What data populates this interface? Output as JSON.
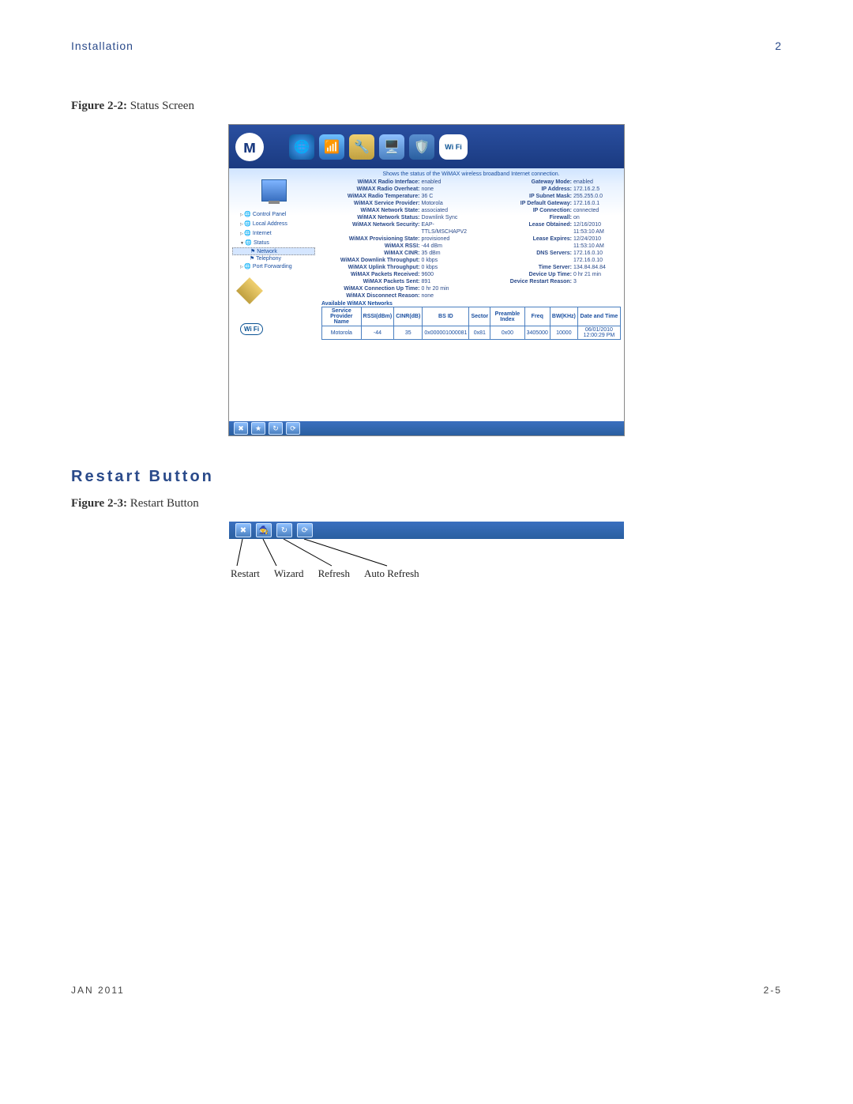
{
  "header": {
    "section": "Installation",
    "page_marker": "2"
  },
  "figure2": {
    "label": "Figure 2-2:",
    "title": "Status Screen"
  },
  "section_title": "Restart Button",
  "figure3": {
    "label": "Figure 2-3:",
    "title": "Restart Button"
  },
  "footer": {
    "date": "JAN 2011",
    "pageno": "2-5"
  },
  "status_screen": {
    "intro": "Shows the status of the WiMAX wireless broadband Internet connection.",
    "nav": {
      "items": [
        {
          "label": "Control Panel",
          "icon": "globe",
          "state": "collapsed"
        },
        {
          "label": "Local Address",
          "icon": "globe",
          "state": "collapsed"
        },
        {
          "label": "Internet",
          "icon": "globe",
          "state": "collapsed"
        },
        {
          "label": "Status",
          "icon": "flag",
          "state": "expanded",
          "children": [
            {
              "label": "Network",
              "selected": true
            },
            {
              "label": "Telephony",
              "selected": false
            }
          ]
        },
        {
          "label": "Port Forwarding",
          "icon": "globe",
          "state": "collapsed"
        }
      ]
    },
    "left_kv": [
      {
        "k": "WiMAX Radio Interface:",
        "v": "enabled"
      },
      {
        "k": "WiMAX Radio Overheat:",
        "v": "none"
      },
      {
        "k": "WiMAX Radio Temperature:",
        "v": "36 C"
      },
      {
        "k": "WiMAX Service Provider:",
        "v": "Motorola"
      },
      {
        "k": "WiMAX Network State:",
        "v": "associated"
      },
      {
        "k": "WiMAX Network Status:",
        "v": "Downlink Sync"
      },
      {
        "k": "WiMAX Network Security:",
        "v": "EAP-TTLS/MSCHAPV2"
      },
      {
        "k": "WiMAX Provisioning State:",
        "v": "provisioned"
      },
      {
        "k": "WiMAX RSSI:",
        "v": "-44 dBm"
      },
      {
        "k": "WiMAX CINR:",
        "v": "35 dBm"
      },
      {
        "k": "WiMAX Downlink Throughput:",
        "v": "0 kbps"
      },
      {
        "k": "WiMAX Uplink Throughput:",
        "v": "0 kbps"
      },
      {
        "k": "WiMAX Packets Received:",
        "v": "9600"
      },
      {
        "k": "WiMAX Packets Sent:",
        "v": "891"
      },
      {
        "k": "WiMAX Connection Up Time:",
        "v": "0 hr 20 min"
      },
      {
        "k": "WiMAX Disconnect Reason:",
        "v": "none"
      }
    ],
    "right_kv": [
      {
        "k": "Gateway Mode:",
        "v": "enabled"
      },
      {
        "k": "IP Address:",
        "v": "172.16.2.5"
      },
      {
        "k": "IP Subnet Mask:",
        "v": "255.255.0.0"
      },
      {
        "k": "IP Default Gateway:",
        "v": "172.16.0.1"
      },
      {
        "k": "IP Connection:",
        "v": "connected"
      },
      {
        "k": "Firewall:",
        "v": "on"
      },
      {
        "k": "Lease Obtained:",
        "v": "12/16/2010 11:53:10 AM"
      },
      {
        "k": "Lease Expires:",
        "v": "12/24/2010 11:53:10 AM"
      },
      {
        "k": "DNS Servers:",
        "v": "172.16.0.10 172.16.0.10"
      },
      {
        "k": "Time Server:",
        "v": "134.84.84.84"
      },
      {
        "k": "Device Up Time:",
        "v": "0 hr 21 min"
      },
      {
        "k": "Device Restart Reason:",
        "v": "3"
      }
    ],
    "available_heading": "Available WiMAX Networks",
    "table": {
      "columns": [
        "Service Provider Name",
        "RSSI(dBm)",
        "CINR(dB)",
        "BS ID",
        "Sector",
        "Preamble Index",
        "Freq",
        "BW(KHz)",
        "Date and Time"
      ],
      "rows": [
        [
          "Motorola",
          "-44",
          "35",
          "0x000001000081",
          "0x81",
          "0x00",
          "3405000",
          "10000",
          "06/01/2010 12:00:29 PM"
        ]
      ]
    },
    "colors": {
      "header_gradient_top": "#2a4fa0",
      "header_gradient_bottom": "#1a3a80",
      "link_text": "#1a4fa0",
      "table_border": "#4a7fc0"
    }
  },
  "restart_fig": {
    "buttons": [
      {
        "name": "restart-button",
        "glyph": "✖",
        "label": "Restart"
      },
      {
        "name": "wizard-button",
        "glyph": "🧙",
        "label": "Wizard"
      },
      {
        "name": "refresh-button",
        "glyph": "↻",
        "label": "Refresh"
      },
      {
        "name": "auto-refresh-button",
        "glyph": "⟳",
        "label": "Auto Refresh"
      }
    ]
  }
}
